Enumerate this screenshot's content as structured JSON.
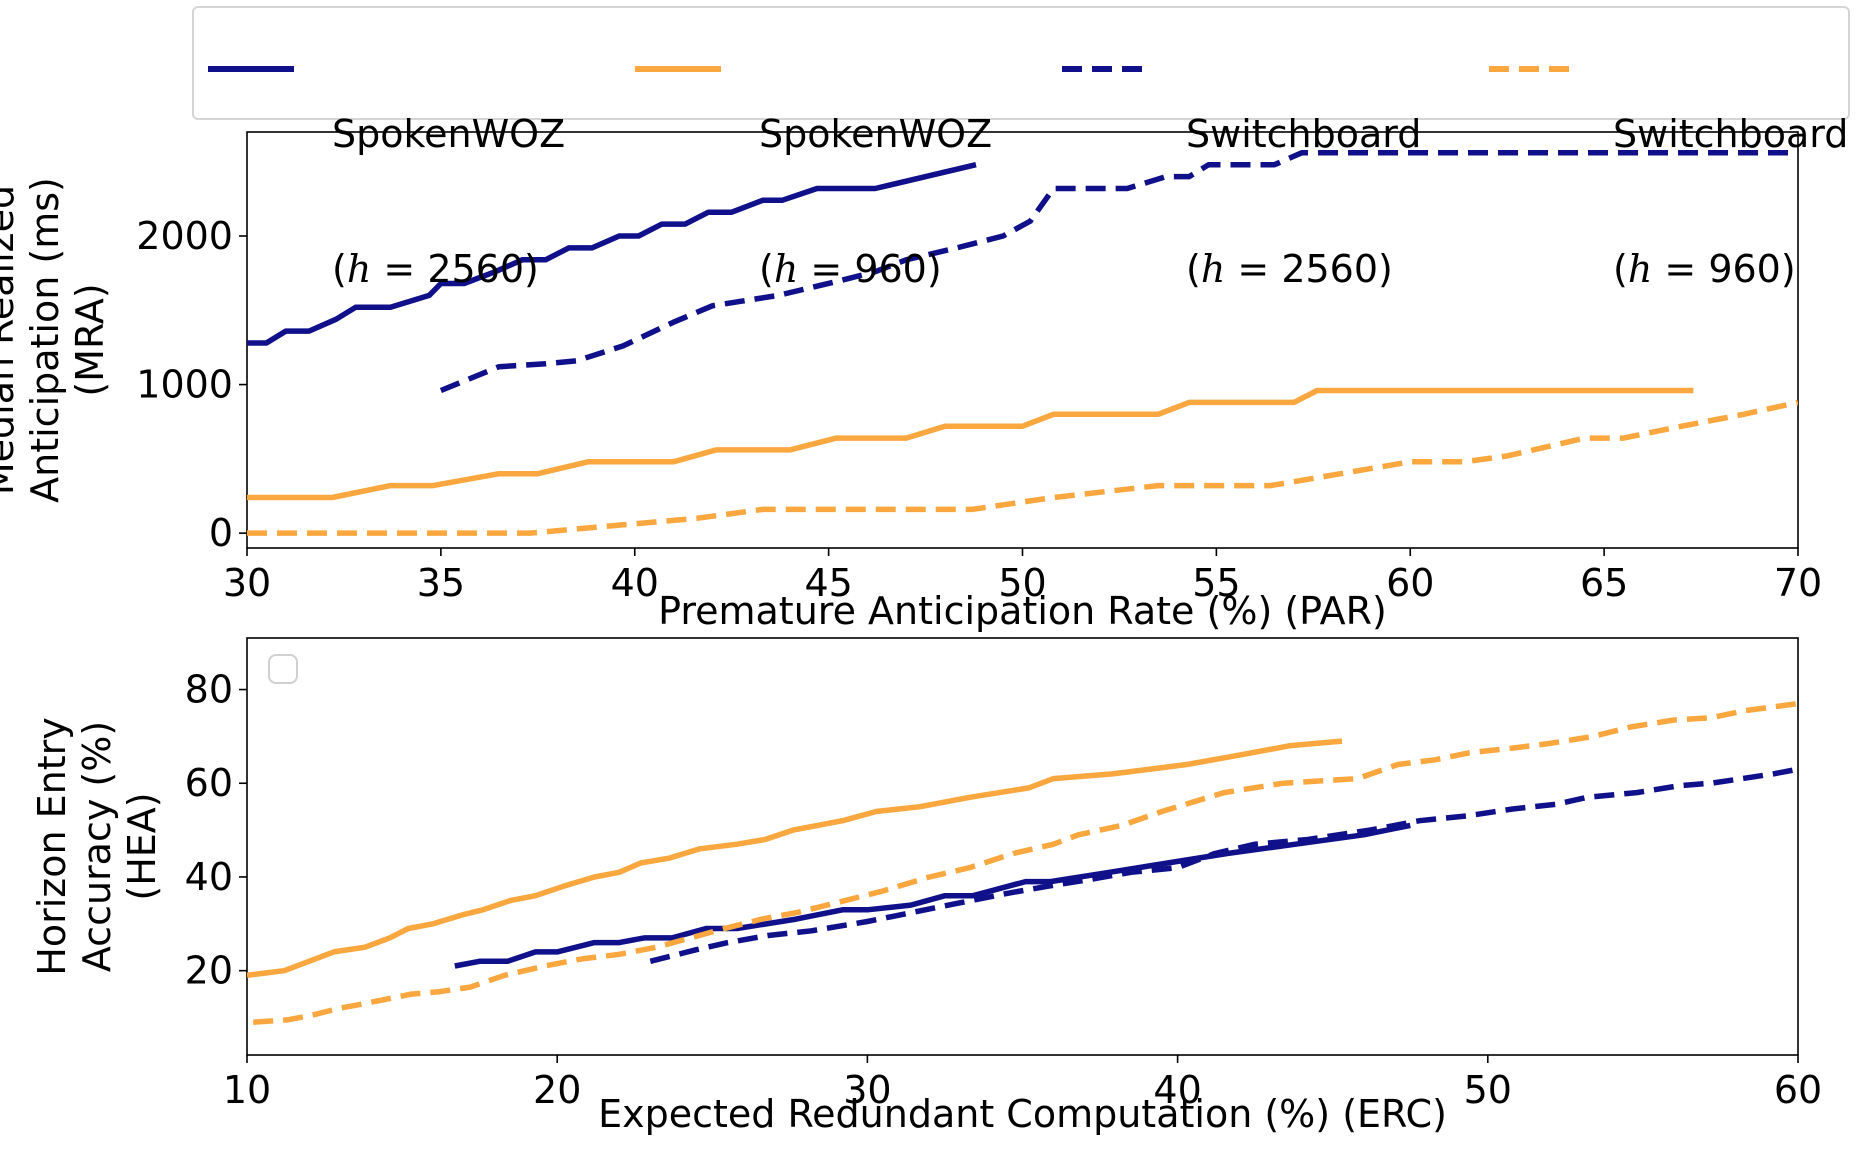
{
  "legend": {
    "entries": [
      {
        "line1": "SpokenWOZ",
        "line2_prefix": "(",
        "line2_var": "h",
        "line2_eq": " = ",
        "line2_val": "2560",
        "line2_suffix": ")",
        "color": "#10108a",
        "dash": "solid"
      },
      {
        "line1": "SpokenWOZ",
        "line2_prefix": "(",
        "line2_var": "h",
        "line2_eq": " = ",
        "line2_val": "960",
        "line2_suffix": ")",
        "color": "#f9a73e",
        "dash": "solid"
      },
      {
        "line1": "Switchboard",
        "line2_prefix": "(",
        "line2_var": "h",
        "line2_eq": " = ",
        "line2_val": "2560",
        "line2_suffix": ")",
        "color": "#10108a",
        "dash": "dashed"
      },
      {
        "line1": "Switchboard",
        "line2_prefix": "(",
        "line2_var": "h",
        "line2_eq": " = ",
        "line2_val": "960",
        "line2_suffix": ")",
        "color": "#f9a73e",
        "dash": "dashed"
      }
    ]
  },
  "chart_data": [
    {
      "type": "line",
      "xlabel": "Premature Anticipation Rate (%) (PAR)",
      "ylabel_lines": [
        "Median Realized",
        "Anticipation (ms)",
        "(MRA)"
      ],
      "xlim": [
        30,
        70
      ],
      "ylim": [
        -100,
        2700
      ],
      "xticks": [
        30,
        35,
        40,
        45,
        50,
        55,
        60,
        65,
        70
      ],
      "yticks": [
        0,
        1000,
        2000
      ],
      "grid": false,
      "series": [
        {
          "name": "SpokenWOZ (h = 2560)",
          "color": "#10108a",
          "dash": "solid",
          "x": [
            30,
            30.5,
            31,
            31.6,
            32.3,
            32.8,
            33.7,
            34.7,
            35,
            35.6,
            36.4,
            37.1,
            37.7,
            38.3,
            38.9,
            39.6,
            40.1,
            40.7,
            41.3,
            41.9,
            42.5,
            43.3,
            43.8,
            44.7,
            45.2,
            46.2,
            48.8
          ],
          "y": [
            1280,
            1280,
            1360,
            1360,
            1440,
            1520,
            1520,
            1600,
            1680,
            1680,
            1760,
            1840,
            1840,
            1920,
            1920,
            2000,
            2000,
            2080,
            2080,
            2160,
            2160,
            2240,
            2240,
            2320,
            2320,
            2320,
            2480
          ]
        },
        {
          "name": "SpokenWOZ (h = 960)",
          "color": "#f9a73e",
          "dash": "solid",
          "x": [
            30,
            31,
            32.2,
            33.7,
            34.8,
            36.5,
            37.5,
            38.8,
            41,
            42.1,
            44,
            45.2,
            47,
            48,
            50,
            50.8,
            53.5,
            54.3,
            57,
            57.6,
            67.3
          ],
          "y": [
            240,
            240,
            240,
            320,
            320,
            400,
            400,
            480,
            480,
            560,
            560,
            640,
            640,
            720,
            720,
            800,
            800,
            880,
            880,
            960,
            960
          ]
        },
        {
          "name": "Switchboard (h = 2560)",
          "color": "#10108a",
          "dash": "dashed",
          "x": [
            35,
            36.5,
            37.7,
            38.5,
            39.7,
            41,
            42,
            43.7,
            45.3,
            46.2,
            47,
            48.3,
            49.5,
            50.2,
            50.8,
            52.7,
            53.7,
            54.3,
            54.8,
            56.5,
            57.2,
            70
          ],
          "y": [
            960,
            1120,
            1140,
            1160,
            1260,
            1420,
            1530,
            1600,
            1700,
            1760,
            1840,
            1920,
            2000,
            2100,
            2320,
            2320,
            2400,
            2400,
            2480,
            2480,
            2560,
            2560
          ]
        },
        {
          "name": "Switchboard (h = 960)",
          "color": "#f9a73e",
          "dash": "dashed",
          "x": [
            30,
            37.3,
            39,
            41.6,
            43.3,
            48.7,
            50.8,
            53.5,
            56.4,
            58.2,
            60,
            61.4,
            62.5,
            64.5,
            65.5,
            67,
            68.6,
            70
          ],
          "y": [
            0,
            0,
            40,
            100,
            160,
            160,
            240,
            320,
            320,
            400,
            480,
            480,
            520,
            640,
            640,
            720,
            800,
            880
          ]
        }
      ]
    },
    {
      "type": "line",
      "xlabel": "Expected Redundant Computation (%) (ERC)",
      "ylabel_lines": [
        "Horizon Entry",
        "Accuracy (%)",
        "(HEA)"
      ],
      "xlim": [
        10,
        60
      ],
      "ylim": [
        2,
        91
      ],
      "xticks": [
        10,
        20,
        30,
        40,
        50,
        60
      ],
      "yticks": [
        20,
        40,
        60,
        80
      ],
      "grid": false,
      "series": [
        {
          "name": "SpokenWOZ (h = 2560)",
          "color": "#10108a",
          "dash": "solid",
          "x": [
            16.7,
            17.5,
            18.4,
            19.3,
            20,
            21.2,
            22,
            22.8,
            23.7,
            24.8,
            25.8,
            27.7,
            29.2,
            30,
            31.4,
            32.5,
            33.4,
            35.1,
            35.9,
            37.8,
            39.7,
            41.6,
            43.8,
            46,
            47.5
          ],
          "y": [
            21,
            22,
            22,
            24,
            24,
            26,
            26,
            27,
            27,
            29,
            29,
            31,
            33,
            33,
            34,
            36,
            36,
            39,
            39,
            41,
            43,
            45,
            47,
            49,
            51
          ]
        },
        {
          "name": "SpokenWOZ (h = 960)",
          "color": "#f9a73e",
          "dash": "solid",
          "x": [
            10,
            11.2,
            12,
            12.8,
            13.8,
            14.6,
            15.2,
            16,
            17,
            17.6,
            18.5,
            19.3,
            20.2,
            21.2,
            22,
            22.7,
            23.6,
            24.6,
            25.8,
            26.7,
            27.6,
            29.2,
            30.3,
            31.7,
            33.3,
            35.2,
            36,
            37.9,
            40.3,
            42,
            43.6,
            45.3
          ],
          "y": [
            19,
            20,
            22,
            24,
            25,
            27,
            29,
            30,
            32,
            33,
            35,
            36,
            38,
            40,
            41,
            43,
            44,
            46,
            47,
            48,
            50,
            52,
            54,
            55,
            57,
            59,
            61,
            62,
            64,
            66,
            68,
            69
          ]
        },
        {
          "name": "Switchboard (h = 2560)",
          "color": "#10108a",
          "dash": "dashed",
          "x": [
            23,
            24.5,
            25.5,
            26.8,
            28.2,
            30,
            31.5,
            33,
            34.5,
            35.8,
            37.2,
            38.5,
            40,
            41.2,
            42.5,
            44.2,
            46.2,
            47.8,
            49.3,
            50.8,
            52.2,
            53.2,
            54.8,
            56.2,
            57.2,
            58.2,
            59.2,
            60
          ],
          "y": [
            22,
            24.5,
            26,
            27.5,
            28.5,
            30.5,
            32.5,
            34.5,
            36.5,
            38,
            39.5,
            41,
            42,
            45,
            47,
            48,
            50,
            52,
            53,
            54.5,
            55.5,
            57,
            58,
            59.5,
            60,
            61,
            62,
            63
          ]
        },
        {
          "name": "Switchboard (h = 960)",
          "color": "#f9a73e",
          "dash": "dashed",
          "x": [
            10.2,
            11.3,
            12.1,
            13,
            13.8,
            15.3,
            16.2,
            17.2,
            18.3,
            19.6,
            20.8,
            22,
            23.2,
            24.3,
            25.4,
            26.6,
            27.8,
            29.3,
            30.5,
            32,
            33.3,
            34.7,
            36,
            36.8,
            38.2,
            39.5,
            40.5,
            41.5,
            43.4,
            44.6,
            45.8,
            47.1,
            48.3,
            49.4,
            50.8,
            52,
            53.4,
            54.6,
            56,
            57.2,
            58.3,
            60
          ],
          "y": [
            9,
            9.5,
            10.5,
            12,
            13,
            15,
            15.5,
            16.5,
            19,
            21,
            22.5,
            23.5,
            25,
            27,
            29,
            31,
            32.5,
            35,
            37,
            40,
            42,
            45,
            47,
            49,
            51,
            54,
            56,
            58,
            60,
            60.5,
            61,
            64,
            65,
            66.5,
            67.5,
            68.5,
            70,
            72,
            73.5,
            74,
            75.5,
            77
          ]
        }
      ]
    }
  ]
}
